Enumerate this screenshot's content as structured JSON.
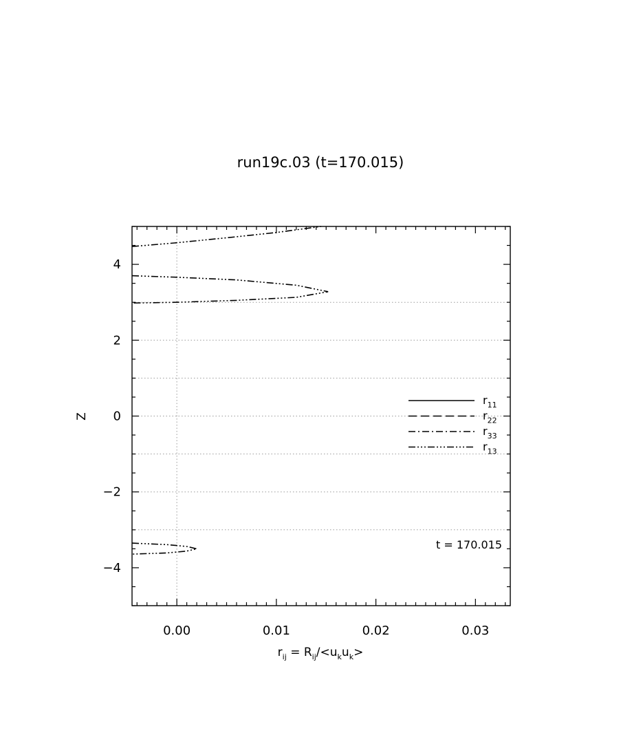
{
  "chart_data": {
    "type": "line",
    "title": "run19c.03 (t=170.015)",
    "xlabel": {
      "base": "r",
      "sub": "ij",
      "eq": " = R",
      "sub2": "ij",
      "rest": "/<u",
      "sub3": "k",
      "mid": "u",
      "sub4": "k",
      "end": ">"
    },
    "ylabel": "Z",
    "xlim": [
      -0.0045,
      0.0335
    ],
    "ylim": [
      -5,
      5
    ],
    "x_ticks": [
      0.0,
      0.01,
      0.02,
      0.03
    ],
    "x_tick_labels": [
      "0.00",
      "0.01",
      "0.02",
      "0.03"
    ],
    "y_ticks": [
      -4,
      -2,
      0,
      2,
      4
    ],
    "y_tick_labels": [
      "−4",
      "−2",
      "0",
      "2",
      "4"
    ],
    "grid": {
      "x_dotted": [
        0.0
      ],
      "y_dotted": [
        -3,
        -2,
        -1,
        0,
        1,
        2,
        3
      ]
    },
    "legend": {
      "placement": "right-middle",
      "entries": [
        {
          "base": "r",
          "sub": "11",
          "dash": "solid"
        },
        {
          "base": "r",
          "sub": "22",
          "dash": "dash"
        },
        {
          "base": "r",
          "sub": "33",
          "dash": "dashdot"
        },
        {
          "base": "r",
          "sub": "13",
          "dash": "dashdotdotdot"
        }
      ]
    },
    "annotation": "t = 170.015",
    "series": [
      {
        "dash": "dashdotdotdot",
        "segments": [
          {
            "x": [
              -0.0045,
              0.0,
              0.005,
              0.01,
              0.0145
            ],
            "y": [
              4.47,
              4.57,
              4.7,
              4.84,
              5.0
            ]
          },
          {
            "x": [
              -0.0045,
              0.0,
              0.006,
              0.012,
              0.0152,
              0.012,
              0.006,
              0.0,
              -0.0045
            ],
            "y": [
              3.7,
              3.66,
              3.59,
              3.45,
              3.28,
              3.13,
              3.05,
              3.0,
              2.98
            ]
          },
          {
            "x": [
              -0.0045,
              -0.001,
              0.001,
              0.002,
              0.001,
              -0.001,
              -0.0045
            ],
            "y": [
              -3.35,
              -3.39,
              -3.44,
              -3.5,
              -3.56,
              -3.61,
              -3.64
            ]
          }
        ]
      }
    ]
  }
}
